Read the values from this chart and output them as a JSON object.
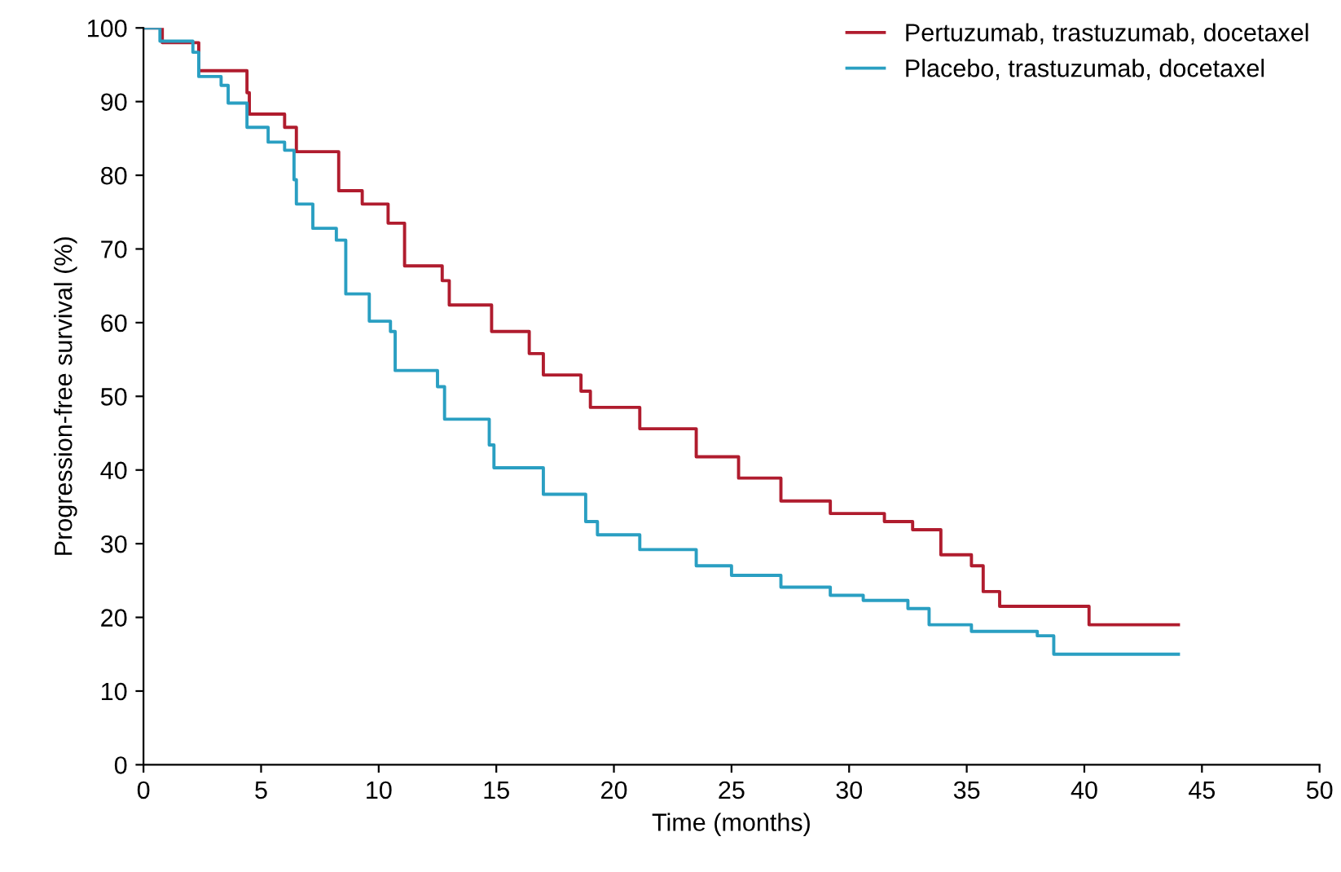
{
  "chart_data": {
    "type": "step",
    "xlabel": "Time (months)",
    "ylabel": "Progression-free survival (%)",
    "xlim": [
      0,
      50
    ],
    "ylim": [
      0,
      100
    ],
    "xticks": [
      0,
      5,
      10,
      15,
      20,
      25,
      30,
      35,
      40,
      45,
      50
    ],
    "yticks": [
      0,
      10,
      20,
      30,
      40,
      50,
      60,
      70,
      80,
      90,
      100
    ],
    "grid": false,
    "legend": "top right",
    "marker": "none",
    "line_style": "solid",
    "series": [
      {
        "name": "Pertuzumab, trastuzumab, docetaxel",
        "color": "#b01c2e",
        "x": [
          0,
          0.8,
          2.35,
          4.4,
          4.5,
          6.0,
          6.5,
          8.3,
          9.3,
          10.4,
          11.1,
          12.7,
          13.0,
          14.8,
          16.4,
          17.0,
          18.6,
          19.0,
          21.1,
          23.5,
          25.3,
          27.1,
          29.2,
          31.5,
          32.7,
          33.9,
          35.2,
          35.7,
          36.4,
          40.2,
          44.0
        ],
        "values": [
          100,
          98,
          94.2,
          91.2,
          88.3,
          86.5,
          83.2,
          77.9,
          76.1,
          73.5,
          67.7,
          65.7,
          62.4,
          58.8,
          55.8,
          52.9,
          50.7,
          48.5,
          45.6,
          41.8,
          38.9,
          35.8,
          34.1,
          33,
          31.9,
          28.5,
          27,
          23.5,
          21.5,
          19,
          19
        ]
      },
      {
        "name": "Placebo, trastuzumab, docetaxel",
        "color": "#2a9fc2",
        "x": [
          0,
          0.7,
          2.1,
          2.35,
          3.3,
          3.6,
          4.4,
          5.3,
          6.0,
          6.4,
          6.5,
          7.2,
          8.2,
          8.6,
          9.6,
          10.5,
          10.7,
          12.5,
          12.8,
          14.7,
          14.9,
          17.0,
          18.8,
          19.3,
          21.1,
          23.5,
          25.0,
          27.1,
          29.2,
          30.6,
          32.5,
          33.4,
          35.2,
          38.0,
          38.7,
          44.0
        ],
        "values": [
          100,
          98.2,
          96.7,
          93.4,
          92.2,
          89.8,
          86.5,
          84.5,
          83.4,
          79.4,
          76.1,
          72.8,
          71.2,
          63.9,
          60.2,
          58.8,
          53.5,
          51.3,
          46.9,
          43.4,
          40.3,
          36.7,
          33,
          31.2,
          29.2,
          27,
          25.7,
          24.1,
          23,
          22.3,
          21.2,
          19,
          18.1,
          17.5,
          15,
          15
        ]
      }
    ]
  }
}
